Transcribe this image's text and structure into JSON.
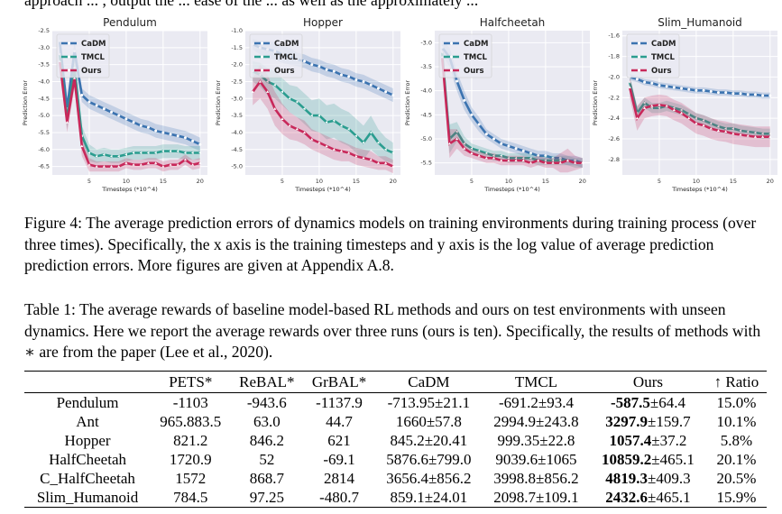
{
  "top_text": "approach ... , output the ... ease of the ... as well as the approximately ... ",
  "figure": {
    "caption_label": "Figure 4:",
    "caption_text": "The average prediction errors of dynamics models on training environments during training process (over three times). Specifically, the x axis is the training timesteps and y axis is the log value of average prediction prediction errors. More figures are given at Appendix A.8."
  },
  "chart_data": [
    {
      "type": "line",
      "title": "Pendulum",
      "xlabel": "Timesteps (*10^4)",
      "ylabel": "Prediction Error",
      "xlim": [
        0,
        21
      ],
      "ylim": [
        -6.75,
        -2.5
      ],
      "xticks": [
        "5",
        "10",
        "15",
        "20"
      ],
      "yticks": [
        "-2.5",
        "-3.0",
        "-3.5",
        "-4.0",
        "-4.5",
        "-5.0",
        "-5.5",
        "-6.0",
        "-6.5"
      ],
      "grid": true,
      "legend": "top-left",
      "x": [
        1,
        2,
        3,
        4,
        5,
        6,
        7,
        8,
        9,
        10,
        11,
        12,
        13,
        14,
        15,
        16,
        17,
        18,
        19,
        20
      ],
      "series": [
        {
          "name": "CaDM",
          "color": "#3b73b0",
          "values": [
            -2.8,
            -4.8,
            -3.1,
            -4.4,
            -4.6,
            -4.7,
            -4.8,
            -4.9,
            -5.0,
            -5.1,
            -5.2,
            -5.3,
            -5.35,
            -5.45,
            -5.5,
            -5.55,
            -5.6,
            -5.65,
            -5.75,
            -5.85
          ],
          "band": [
            0.15,
            0.3,
            0.3,
            0.2,
            0.2,
            0.2,
            0.2,
            0.2,
            0.2,
            0.2,
            0.2,
            0.2,
            0.2,
            0.2,
            0.2,
            0.2,
            0.2,
            0.2,
            0.2,
            0.2
          ]
        },
        {
          "name": "TMCL",
          "color": "#2a9d8f",
          "values": [
            -3.2,
            -5.1,
            -3.6,
            -5.6,
            -6.1,
            -6.2,
            -6.15,
            -6.2,
            -6.2,
            -6.15,
            -6.1,
            -6.1,
            -6.1,
            -6.1,
            -6.05,
            -6.05,
            -6.05,
            -6.1,
            -6.1,
            -6.1
          ],
          "band": [
            0.2,
            0.3,
            0.3,
            0.3,
            0.25,
            0.2,
            0.2,
            0.2,
            0.2,
            0.2,
            0.2,
            0.2,
            0.2,
            0.2,
            0.2,
            0.2,
            0.2,
            0.2,
            0.2,
            0.2
          ]
        },
        {
          "name": "Ours",
          "color": "#c8285a",
          "values": [
            -3.4,
            -5.2,
            -3.9,
            -5.9,
            -6.45,
            -6.5,
            -6.5,
            -6.5,
            -6.5,
            -6.4,
            -6.45,
            -6.45,
            -6.4,
            -6.4,
            -6.5,
            -6.45,
            -6.45,
            -6.3,
            -6.45,
            -6.4
          ],
          "band": [
            0.2,
            0.3,
            0.3,
            0.3,
            0.2,
            0.15,
            0.15,
            0.15,
            0.15,
            0.15,
            0.15,
            0.15,
            0.15,
            0.15,
            0.15,
            0.15,
            0.15,
            0.15,
            0.15,
            0.15
          ]
        }
      ]
    },
    {
      "type": "line",
      "title": "Hopper",
      "xlabel": "Timesteps (*10^4)",
      "ylabel": "Prediction Error",
      "xlim": [
        0,
        21
      ],
      "ylim": [
        -5.25,
        -1.0
      ],
      "xticks": [
        "5",
        "10",
        "15",
        "20"
      ],
      "yticks": [
        "-1.0",
        "-1.5",
        "-2.0",
        "-2.5",
        "-3.0",
        "-3.5",
        "-4.0",
        "-4.5",
        "-5.0"
      ],
      "grid": true,
      "legend": "top-left",
      "x": [
        1,
        2,
        3,
        4,
        5,
        6,
        7,
        8,
        9,
        10,
        11,
        12,
        13,
        14,
        15,
        16,
        17,
        18,
        19,
        20
      ],
      "series": [
        {
          "name": "CaDM",
          "color": "#3b73b0",
          "values": [
            -1.4,
            -1.5,
            -1.55,
            -1.6,
            -1.7,
            -1.75,
            -1.85,
            -1.9,
            -2.0,
            -2.05,
            -2.15,
            -2.2,
            -2.3,
            -2.35,
            -2.45,
            -2.5,
            -2.6,
            -2.7,
            -2.8,
            -2.9
          ],
          "band": [
            0.15,
            0.2,
            0.25,
            0.25,
            0.25,
            0.25,
            0.2,
            0.2,
            0.2,
            0.2,
            0.2,
            0.2,
            0.2,
            0.2,
            0.2,
            0.2,
            0.2,
            0.2,
            0.2,
            0.2
          ]
        },
        {
          "name": "TMCL",
          "color": "#2a9d8f",
          "values": [
            -2.2,
            -2.3,
            -2.5,
            -2.6,
            -2.8,
            -3.0,
            -3.1,
            -3.3,
            -3.5,
            -3.5,
            -3.7,
            -3.65,
            -3.8,
            -3.9,
            -4.1,
            -4.3,
            -4.0,
            -4.3,
            -4.5,
            -4.6
          ],
          "band": [
            0.3,
            0.35,
            0.4,
            0.4,
            0.4,
            0.4,
            0.45,
            0.45,
            0.45,
            0.5,
            0.5,
            0.5,
            0.5,
            0.5,
            0.5,
            0.5,
            0.5,
            0.4,
            0.35,
            0.3
          ]
        },
        {
          "name": "Ours",
          "color": "#c8285a",
          "values": [
            -2.8,
            -2.5,
            -2.8,
            -3.3,
            -3.6,
            -3.8,
            -3.9,
            -4.0,
            -4.2,
            -4.3,
            -4.4,
            -4.5,
            -4.55,
            -4.6,
            -4.7,
            -4.75,
            -4.8,
            -4.9,
            -4.9,
            -5.0
          ],
          "band": [
            0.4,
            0.5,
            0.5,
            0.5,
            0.45,
            0.4,
            0.35,
            0.35,
            0.3,
            0.3,
            0.3,
            0.3,
            0.3,
            0.25,
            0.25,
            0.25,
            0.25,
            0.2,
            0.2,
            0.2
          ]
        }
      ]
    },
    {
      "type": "line",
      "title": "Halfcheetah",
      "xlabel": "Timesteps (*10^4)",
      "ylabel": "Prediction Error",
      "xlim": [
        0,
        21
      ],
      "ylim": [
        -5.75,
        -2.75
      ],
      "xticks": [
        "5",
        "10",
        "15",
        "20"
      ],
      "yticks": [
        "-3.0",
        "-3.5",
        "-4.0",
        "-4.5",
        "-5.0",
        "-5.5"
      ],
      "grid": true,
      "legend": "top-left",
      "x": [
        1,
        2,
        3,
        4,
        5,
        6,
        7,
        8,
        9,
        10,
        11,
        12,
        13,
        14,
        15,
        16,
        17,
        18,
        19,
        20
      ],
      "series": [
        {
          "name": "CaDM",
          "color": "#3b73b0",
          "values": [
            -3.1,
            -3.3,
            -3.8,
            -4.2,
            -4.5,
            -4.7,
            -4.9,
            -5.0,
            -5.1,
            -5.15,
            -5.2,
            -5.25,
            -5.3,
            -5.35,
            -5.35,
            -5.4,
            -5.4,
            -5.45,
            -5.45,
            -5.5
          ],
          "band": [
            0.15,
            0.2,
            0.2,
            0.2,
            0.15,
            0.15,
            0.1,
            0.1,
            0.1,
            0.1,
            0.1,
            0.1,
            0.1,
            0.1,
            0.1,
            0.1,
            0.1,
            0.1,
            0.1,
            0.1
          ]
        },
        {
          "name": "TMCL",
          "color": "#2a9d8f",
          "values": [
            -3.2,
            -5.0,
            -4.85,
            -5.1,
            -5.2,
            -5.25,
            -5.3,
            -5.35,
            -5.35,
            -5.4,
            -5.4,
            -5.4,
            -5.4,
            -5.45,
            -5.45,
            -5.45,
            -5.45,
            -5.45,
            -5.5,
            -5.5
          ],
          "band": [
            0.2,
            0.3,
            0.2,
            0.15,
            0.1,
            0.1,
            0.1,
            0.1,
            0.1,
            0.1,
            0.1,
            0.1,
            0.1,
            0.1,
            0.1,
            0.1,
            0.1,
            0.1,
            0.1,
            0.1
          ]
        },
        {
          "name": "Ours",
          "color": "#c8285a",
          "values": [
            -3.3,
            -5.1,
            -5.0,
            -5.2,
            -5.3,
            -5.35,
            -5.4,
            -5.4,
            -5.45,
            -5.45,
            -5.45,
            -5.45,
            -5.5,
            -5.45,
            -5.5,
            -5.5,
            -5.5,
            -5.45,
            -5.5,
            -5.5
          ],
          "band": [
            0.2,
            0.3,
            0.2,
            0.15,
            0.1,
            0.1,
            0.1,
            0.1,
            0.1,
            0.1,
            0.1,
            0.1,
            0.1,
            0.1,
            0.1,
            0.1,
            0.2,
            0.25,
            0.15,
            0.1
          ]
        }
      ]
    },
    {
      "type": "line",
      "title": "Slim_Humanoid",
      "xlabel": "Timesteps (*10^4)",
      "ylabel": "Prediction Error",
      "xlim": [
        0,
        21
      ],
      "ylim": [
        -2.95,
        -1.55
      ],
      "xticks": [
        "5",
        "10",
        "15",
        "20"
      ],
      "yticks": [
        "-1.6",
        "-1.8",
        "-2.0",
        "-2.2",
        "-2.4",
        "-2.6",
        "-2.8"
      ],
      "grid": true,
      "legend": "top-left",
      "x": [
        1,
        2,
        3,
        4,
        5,
        6,
        7,
        8,
        9,
        10,
        11,
        12,
        13,
        14,
        15,
        16,
        17,
        18,
        19,
        20
      ],
      "series": [
        {
          "name": "CaDM",
          "color": "#3b73b0",
          "values": [
            -2.0,
            -2.02,
            -2.05,
            -2.06,
            -2.08,
            -2.09,
            -2.1,
            -2.11,
            -2.12,
            -2.13,
            -2.13,
            -2.14,
            -2.15,
            -2.15,
            -2.16,
            -2.16,
            -2.17,
            -2.17,
            -2.18,
            -2.18
          ],
          "band": [
            0.03,
            0.03,
            0.03,
            0.03,
            0.03,
            0.03,
            0.03,
            0.03,
            0.03,
            0.03,
            0.03,
            0.03,
            0.03,
            0.03,
            0.03,
            0.03,
            0.03,
            0.03,
            0.03,
            0.03
          ]
        },
        {
          "name": "TMCL",
          "color": "#2a9d8f",
          "values": [
            -2.05,
            -2.35,
            -2.25,
            -2.3,
            -2.3,
            -2.28,
            -2.3,
            -2.32,
            -2.36,
            -2.4,
            -2.42,
            -2.45,
            -2.48,
            -2.5,
            -2.5,
            -2.52,
            -2.53,
            -2.54,
            -2.55,
            -2.55
          ],
          "band": [
            0.06,
            0.06,
            0.05,
            0.05,
            0.05,
            0.05,
            0.05,
            0.05,
            0.05,
            0.05,
            0.05,
            0.05,
            0.05,
            0.05,
            0.05,
            0.05,
            0.05,
            0.05,
            0.05,
            0.05
          ]
        },
        {
          "name": "Ours",
          "color": "#c8285a",
          "values": [
            -2.1,
            -2.4,
            -2.3,
            -2.28,
            -2.27,
            -2.28,
            -2.32,
            -2.35,
            -2.4,
            -2.45,
            -2.47,
            -2.5,
            -2.52,
            -2.53,
            -2.55,
            -2.56,
            -2.57,
            -2.58,
            -2.58,
            -2.58
          ],
          "band": [
            0.1,
            0.12,
            0.1,
            0.1,
            0.1,
            0.1,
            0.1,
            0.1,
            0.1,
            0.1,
            0.1,
            0.1,
            0.1,
            0.1,
            0.1,
            0.1,
            0.1,
            0.1,
            0.1,
            0.1
          ]
        }
      ]
    }
  ],
  "table": {
    "caption_label": "Table 1:",
    "caption_text": "The average rewards of baseline model-based RL methods and ours on test environments with unseen dynamics. Here we report the average rewards over three runs (ours is ten). Specifically, the results of methods with ∗ are from the paper (Lee et al., 2020).",
    "headers": [
      "",
      "PETS*",
      "ReBAL*",
      "GrBAL*",
      "CaDM",
      "TMCL",
      "Ours",
      "↑ Ratio"
    ],
    "rows": [
      {
        "env": "Pendulum",
        "pets": "-1103",
        "rebal": "-943.6",
        "grbal": "-1137.9",
        "cadm": "-713.95±21.1",
        "tmcl": "-691.2±93.4",
        "ours_mean": "-587.5",
        "ours_std": "±64.4",
        "ratio": "15.0%"
      },
      {
        "env": "Ant",
        "pets": "965.883.5",
        "rebal": "63.0",
        "grbal": "44.7",
        "cadm": "1660±57.8",
        "tmcl": "2994.9±243.8",
        "ours_mean": "3297.9",
        "ours_std": "±159.7",
        "ratio": "10.1%"
      },
      {
        "env": "Hopper",
        "pets": "821.2",
        "rebal": "846.2",
        "grbal": "621",
        "cadm": "845.2±20.41",
        "tmcl": "999.35±22.8",
        "ours_mean": "1057.4",
        "ours_std": "±37.2",
        "ratio": "5.8%"
      },
      {
        "env": "HalfCheetah",
        "pets": "1720.9",
        "rebal": "52",
        "grbal": "-69.1",
        "cadm": "5876.6±799.0",
        "tmcl": "9039.6±1065",
        "ours_mean": "10859.2",
        "ours_std": "±465.1",
        "ratio": "20.1%"
      },
      {
        "env": "C_HalfCheetah",
        "pets": "1572",
        "rebal": "868.7",
        "grbal": "2814",
        "cadm": "3656.4±856.2",
        "tmcl": "3998.8±856.2",
        "ours_mean": "4819.3",
        "ours_std": "±409.3",
        "ratio": "20.5%"
      },
      {
        "env": "Slim_Humanoid",
        "pets": "784.5",
        "rebal": "97.25",
        "grbal": "-480.7",
        "cadm": "859.1±24.01",
        "tmcl": "2098.7±109.1",
        "ours_mean": "2432.6",
        "ours_std": "±465.1",
        "ratio": "15.9%"
      }
    ]
  }
}
